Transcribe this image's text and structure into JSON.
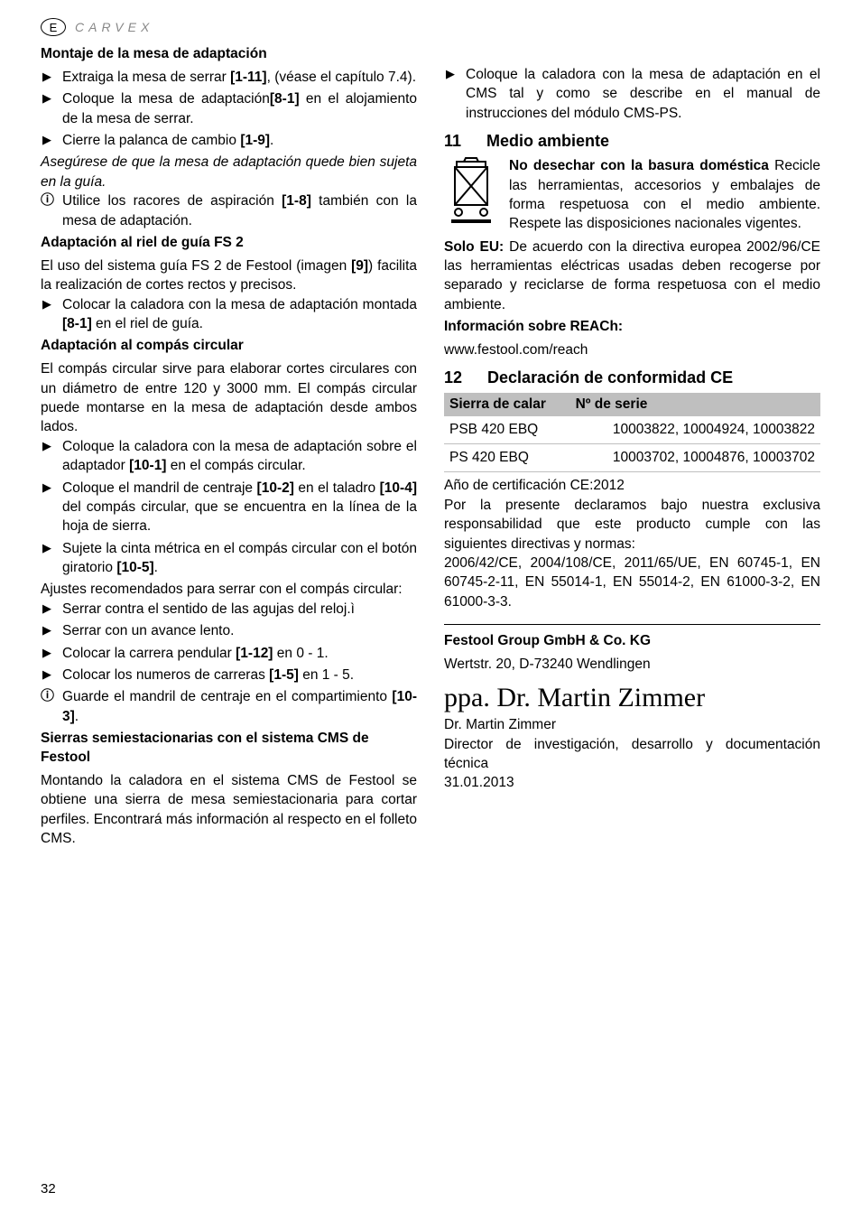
{
  "header": {
    "badge": "E",
    "brand": "CARVEX"
  },
  "left": {
    "s1_title": "Montaje de la mesa de adaptación",
    "s1_li1": "Extraiga la mesa de serrar <b>[1-11]</b>, (véase el capítulo 7.4).",
    "s1_li2": "Coloque la mesa de adaptación<b>[8-1]</b> en el alojamiento de la mesa de serrar.",
    "s1_li3": "Cierre la palanca de cambio <b>[1-9]</b>.",
    "s1_note": "Asegúrese de que la mesa de adaptación quede bien sujeta en la guía.",
    "s1_info": "Utilice los racores de aspiración <b>[1-8]</b> también con la mesa de adaptación.",
    "s2_title": "Adaptación al riel de guía FS 2",
    "s2_p1": "El uso del sistema guía FS 2 de Festool (imagen <b>[9]</b>) facilita la realización de cortes rectos y precisos.",
    "s2_li1": "Colocar la caladora con la mesa de adaptación montada <b>[8-1]</b> en el riel de guía.",
    "s3_title": "Adaptación al compás circular",
    "s3_p1": "El compás circular sirve para elaborar cortes circulares con un diámetro de entre 120 y 3000 mm. El compás circular puede montarse en la mesa de adaptación desde ambos lados.",
    "s3_li1": "Coloque la caladora con la mesa de adaptación sobre el adaptador <b>[10-1]</b> en el compás circular.",
    "s3_li2": "Coloque el mandril de centraje <b>[10-2]</b> en el taladro <b>[10-4]</b> del compás circular, que se encuentra en la línea de la hoja de sierra.",
    "s3_li3": "Sujete la cinta métrica en el compás circular con el botón giratorio <b>[10-5]</b>.",
    "s3_p2": "Ajustes recomendados para serrar con el compás circular:",
    "s3_li4": "Serrar contra el sentido de las agujas del reloj.ì",
    "s3_li5": "Serrar con un avance lento.",
    "s3_li6": "Colocar la carrera pendular <b>[1-12]</b> en 0 - 1.",
    "s3_li7": "Colocar los numeros de carreras <b>[1-5]</b> en 1 - 5.",
    "s3_info": "Guarde el mandril de centraje en el compartimiento <b>[10-3]</b>.",
    "s4_title": "Sierras semiestacionarias con el sistema CMS de Festool",
    "s4_p1": "Montando la caladora en el sistema CMS de Festool se obtiene una sierra de mesa semiestacionaria para cortar perfiles. Encontrará más información al respecto en el folleto CMS."
  },
  "right": {
    "r_li1": "Coloque la caladora con la mesa de adaptación en el CMS tal y como se describe en el manual de instrucciones del módulo CMS-PS.",
    "h11_num": "11",
    "h11_title": "Medio ambiente",
    "env_b": "No desechar con la basura doméstica",
    "env_p": " Recicle las herramientas, accesorios y embalajes de forma respetuosa con el medio ambiente. Respete las disposiciones nacionales vigentes.",
    "eu_b": "Solo EU:",
    "eu_p": " De acuerdo con la directiva europea 2002/96/CE las herramientas eléctricas usadas deben recogerse por separado y reciclarse de forma respetuosa con el medio ambiente.",
    "reach_b": "Información sobre REACh:",
    "reach_url": "www.festool.com/reach",
    "h12_num": "12",
    "h12_title": "Declaración de conformidad CE",
    "table": {
      "col1": "Sierra de calar",
      "col2": "Nº de serie",
      "r1c1": "PSB 420 EBQ",
      "r1c2": "10003822, 10004924, 10003822",
      "r2c1": "PS 420 EBQ",
      "r2c2": "10003702, 10004876, 10003702"
    },
    "cert_year": "Año de certificación CE:2012",
    "decl_p": "Por la presente declaramos bajo nuestra exclusiva responsabilidad que este producto cumple con las siguientes directivas y normas:",
    "norms": "2006/42/CE, 2004/108/CE, 2011/65/UE, EN 60745-1, EN 60745-2-11, EN 55014-1, EN 55014-2, EN 61000-3-2, EN 61000-3-3.",
    "company": "Festool Group GmbH & Co. KG",
    "addr": "Wertstr. 20, D-73240 Wendlingen",
    "sig": "ppa. Dr. Martin Zimmer",
    "name": "Dr. Martin Zimmer",
    "role": "Director de investigación, desarrollo y documentación técnica",
    "date": "31.01.2013"
  },
  "page": "32"
}
